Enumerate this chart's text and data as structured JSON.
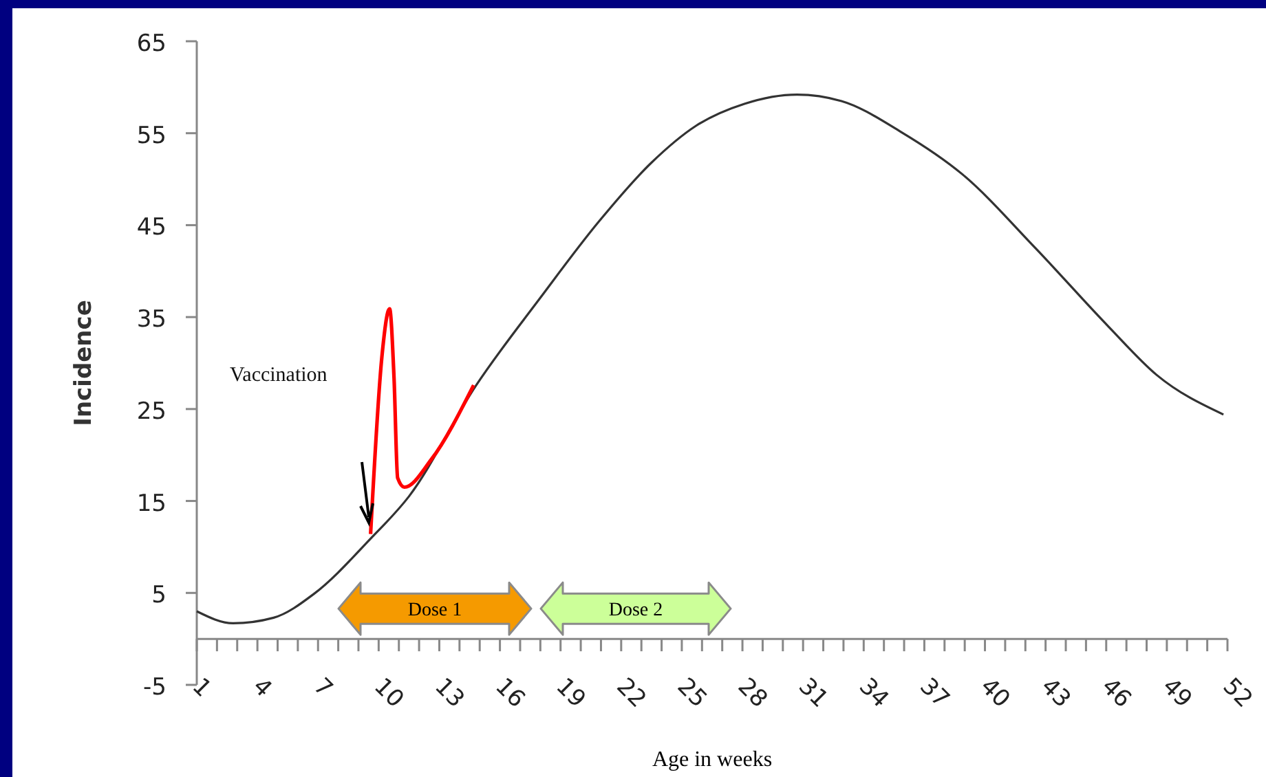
{
  "chart_data": {
    "type": "line",
    "xlabel": "Age in weeks",
    "ylabel": "Incidence",
    "xlim": [
      1,
      52
    ],
    "ylim": [
      -5,
      65
    ],
    "xticks": [
      1,
      {
        "value": 2,
        "label": null
      },
      {
        "value": 3,
        "label": null
      },
      4,
      {
        "value": 5,
        "label": null
      },
      {
        "value": 6,
        "label": null
      },
      7,
      {
        "value": 8,
        "label": null
      },
      {
        "value": 9,
        "label": null
      },
      10,
      {
        "value": 11,
        "label": null
      },
      {
        "value": 12,
        "label": null
      },
      13,
      {
        "value": 14,
        "label": null
      },
      {
        "value": 15,
        "label": null
      },
      16,
      {
        "value": 17,
        "label": null
      },
      {
        "value": 18,
        "label": null
      },
      19,
      {
        "value": 20,
        "label": null
      },
      {
        "value": 21,
        "label": null
      },
      22,
      {
        "value": 23,
        "label": null
      },
      {
        "value": 24,
        "label": null
      },
      25,
      {
        "value": 26,
        "label": null
      },
      {
        "value": 27,
        "label": null
      },
      28,
      {
        "value": 29,
        "label": null
      },
      {
        "value": 30,
        "label": null
      },
      31,
      {
        "value": 32,
        "label": null
      },
      {
        "value": 33,
        "label": null
      },
      34,
      {
        "value": 35,
        "label": null
      },
      {
        "value": 36,
        "label": null
      },
      37,
      {
        "value": 38,
        "label": null
      },
      {
        "value": 39,
        "label": null
      },
      40,
      {
        "value": 41,
        "label": null
      },
      {
        "value": 42,
        "label": null
      },
      43,
      {
        "value": 44,
        "label": null
      },
      {
        "value": 45,
        "label": null
      },
      46,
      {
        "value": 47,
        "label": null
      },
      {
        "value": 48,
        "label": null
      },
      49,
      {
        "value": 50,
        "label": null
      },
      {
        "value": 51,
        "label": null
      },
      52
    ],
    "yticks": [
      -5,
      5,
      15,
      25,
      35,
      45,
      55,
      65
    ],
    "grid": false,
    "marker": "none",
    "line_style": "solid",
    "series": [
      {
        "color": "#333333",
        "x": [
          1,
          2.8,
          4.8,
          6.8,
          9.6,
          11.5,
          14.8,
          18,
          20.9,
          23.5,
          25.7,
          28.1,
          30.7,
          32.9,
          35.8,
          38.9,
          42.5,
          46.1,
          48.5,
          51.8
        ],
        "values": [
          3,
          1.7,
          2.3,
          4.9,
          10.9,
          15.5,
          27.5,
          37.1,
          45.4,
          51.8,
          55.8,
          58.2,
          59.2,
          58.5,
          55.2,
          50.5,
          42.5,
          34,
          28.7,
          24.4
        ]
      },
      {
        "color": "#ff0000",
        "x": [
          9.6,
          10.16,
          10.54,
          10.76,
          10.94,
          11.27,
          12.6,
          14.7
        ],
        "values": [
          11.4,
          30.7,
          35.9,
          28.4,
          17.5,
          16.5,
          19.5,
          27.6
        ]
      }
    ],
    "annotations": [
      "Vaccination",
      "Dose 1",
      "Dose 2"
    ]
  }
}
